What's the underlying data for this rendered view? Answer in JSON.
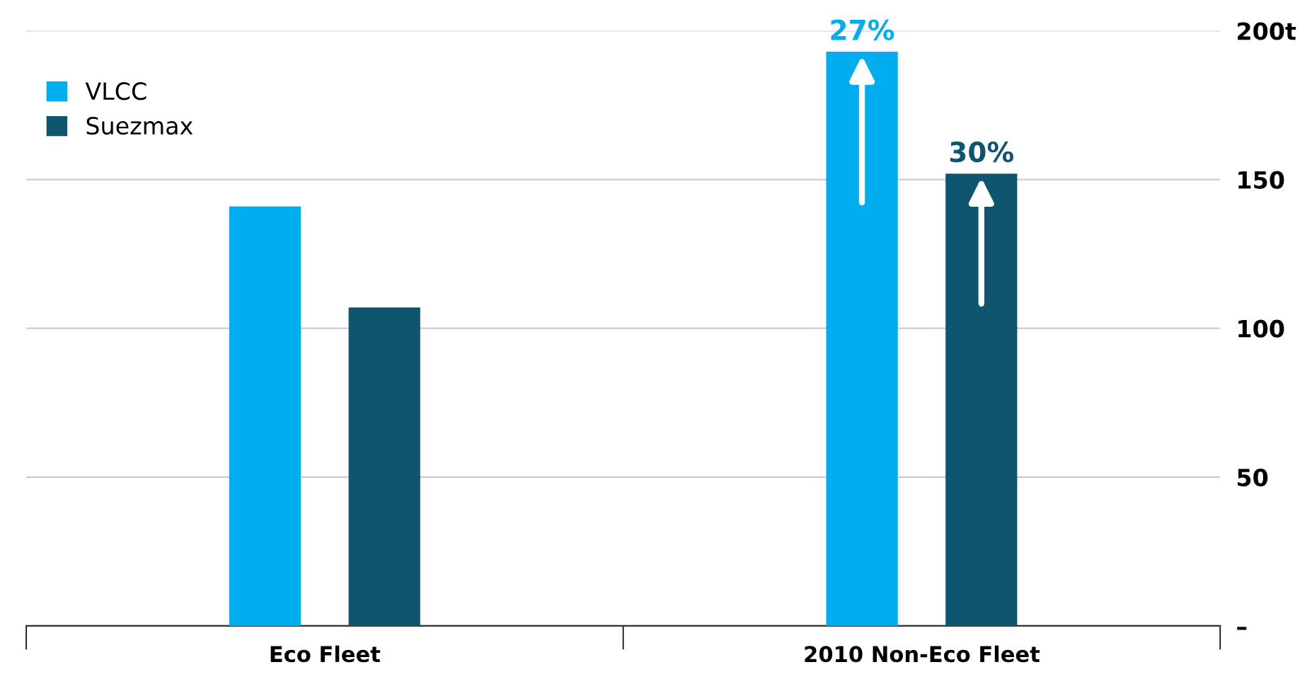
{
  "chart_data": {
    "type": "bar",
    "categories": [
      "Eco Fleet",
      "2010 Non-Eco Fleet"
    ],
    "series": [
      {
        "name": "VLCC",
        "color": "#00aeef",
        "values": [
          141,
          193
        ]
      },
      {
        "name": "Suezmax",
        "color": "#0f5570",
        "values": [
          107,
          152
        ]
      }
    ],
    "ylim": [
      0,
      200
    ],
    "yticks": [
      {
        "value": 0,
        "label": "–"
      },
      50,
      100,
      150,
      {
        "value": 200,
        "label": "200t"
      }
    ],
    "grid": "y",
    "legend": "top left",
    "annotations": [
      "27%",
      "30%"
    ]
  }
}
